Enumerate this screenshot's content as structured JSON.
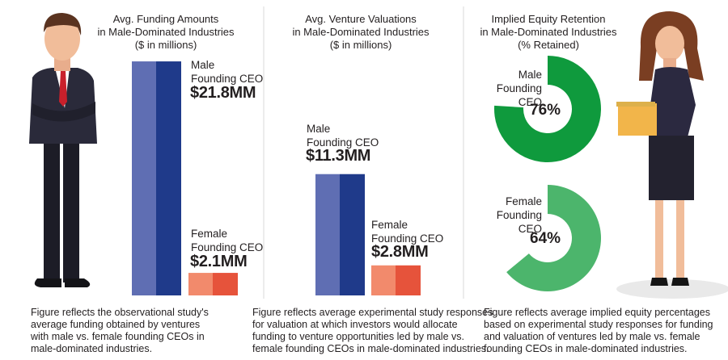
{
  "colors": {
    "male_bar_light": "#5f6eb3",
    "male_bar_dark": "#1f3a8a",
    "female_bar_light": "#f28a6c",
    "female_bar_dark": "#e6533b",
    "male_ring": "#0f9a3d",
    "female_ring": "#4cb56c"
  },
  "panels": [
    {
      "title_lines": [
        "Avg. Funding Amounts",
        "in Male-Dominated Industries",
        "($ in millions)"
      ],
      "male": {
        "label_lines": [
          "Male",
          "Founding CEO"
        ],
        "value_text": "$21.8MM"
      },
      "female": {
        "label_lines": [
          "Female",
          "Founding CEO"
        ],
        "value_text": "$2.1MM"
      },
      "caption_lines": [
        "Figure reflects the observational study's",
        "average funding obtained by ventures",
        "with male vs. female founding CEOs in",
        "male-dominated industries."
      ]
    },
    {
      "title_lines": [
        "Avg. Venture Valuations",
        "in Male-Dominated Industries",
        "($ in millions)"
      ],
      "male": {
        "label_lines": [
          "Male",
          "Founding CEO"
        ],
        "value_text": "$11.3MM"
      },
      "female": {
        "label_lines": [
          "Female",
          "Founding CEO"
        ],
        "value_text": "$2.8MM"
      },
      "caption_lines": [
        "Figure reflects average experimental study responses",
        "for valuation at which investors would allocate",
        "funding to venture opportunities led by male vs.",
        "female founding CEOs in male-dominated industries."
      ]
    },
    {
      "title_lines": [
        "Implied Equity Retention",
        "in Male-Dominated Industries",
        "(% Retained)"
      ],
      "male": {
        "label_lines": [
          "Male",
          "Founding CEO"
        ],
        "value_text": "76%"
      },
      "female": {
        "label_lines": [
          "Female",
          "Founding CEO"
        ],
        "value_text": "64%"
      },
      "caption_lines": [
        "Figure reflects average implied equity percentages",
        "based on experimental study responses for funding",
        "and valuation of ventures led by male vs. female",
        "founding CEOs in male-dominated industries."
      ]
    }
  ],
  "chart_data": [
    {
      "type": "bar",
      "title": "Avg. Funding Amounts in Male-Dominated Industries ($ in millions)",
      "categories": [
        "Male Founding CEO",
        "Female Founding CEO"
      ],
      "values": [
        21.8,
        2.1
      ]
    },
    {
      "type": "bar",
      "title": "Avg. Venture Valuations in Male-Dominated Industries ($ in millions)",
      "categories": [
        "Male Founding CEO",
        "Female Founding CEO"
      ],
      "values": [
        11.3,
        2.8
      ]
    },
    {
      "type": "pie",
      "title": "Implied Equity Retention in Male-Dominated Industries (% Retained)",
      "categories": [
        "Male Founding CEO",
        "Female Founding CEO"
      ],
      "values": [
        76,
        64
      ]
    }
  ]
}
